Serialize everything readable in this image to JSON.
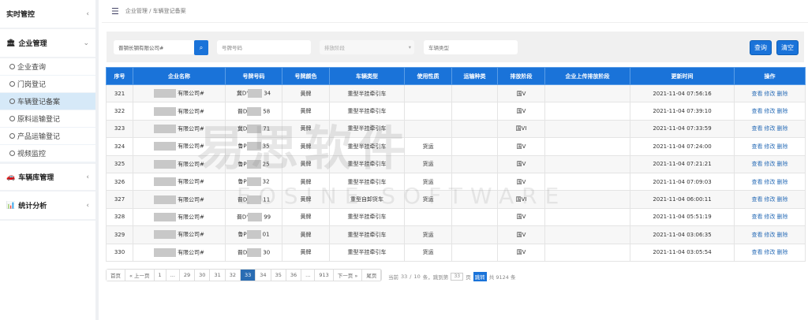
{
  "sidebar": {
    "groups": [
      {
        "label": "实时管控",
        "icon": "none"
      },
      {
        "label": "企业管理",
        "icon": "bank-icon"
      },
      {
        "label": "车辆库管理",
        "icon": "car-icon"
      },
      {
        "label": "统计分析",
        "icon": "bar-chart-icon"
      }
    ],
    "items": [
      {
        "label": "企业查询"
      },
      {
        "label": "门岗登记"
      },
      {
        "label": "车辆登记备案",
        "active": true
      },
      {
        "label": "原料运输登记"
      },
      {
        "label": "产品运输登记"
      },
      {
        "label": "视频监控"
      }
    ]
  },
  "breadcrumb": "企业管理 / 车辆登记备案",
  "filters": {
    "company_value": "晋钢长钢有限公司#",
    "plate_placeholder": "号牌号码",
    "emission_placeholder": "排放阶段",
    "vehicle_type_placeholder": "车辆类型",
    "query": "查询",
    "clear": "清空"
  },
  "table": {
    "headers": [
      "序号",
      "企业名称",
      "号牌号码",
      "号牌颜色",
      "车辆类型",
      "使用性质",
      "运输种类",
      "排放阶段",
      "企业上传排放阶段",
      "更新时间",
      "操作"
    ],
    "rows": [
      [
        "321",
        "有限公司#",
        "冀D'",
        "34",
        "黄牌",
        "重型半挂牵引车",
        "",
        "",
        "国V",
        "",
        "2021-11-04 07:56:16"
      ],
      [
        "322",
        "有限公司#",
        "晋D",
        "58",
        "黄牌",
        "重型半挂牵引车",
        "",
        "",
        "国V",
        "",
        "2021-11-04 07:39:10"
      ],
      [
        "323",
        "有限公司#",
        "冀D",
        "71",
        "黄牌",
        "重型半挂牵引车",
        "",
        "",
        "国VI",
        "",
        "2021-11-04 07:33:59"
      ],
      [
        "324",
        "有限公司#",
        "鲁P",
        "35",
        "黄牌",
        "重型半挂牵引车",
        "货运",
        "",
        "国V",
        "",
        "2021-11-04 07:24:00"
      ],
      [
        "325",
        "有限公司#",
        "鲁P",
        "25",
        "黄牌",
        "重型半挂牵引车",
        "货运",
        "",
        "国V",
        "",
        "2021-11-04 07:21:21"
      ],
      [
        "326",
        "有限公司#",
        "鲁P",
        "32",
        "黄牌",
        "重型半挂牵引车",
        "货运",
        "",
        "国V",
        "",
        "2021-11-04 07:09:03"
      ],
      [
        "327",
        "有限公司#",
        "晋D",
        "11",
        "黄牌",
        "重型自卸货车",
        "货运",
        "",
        "国VI",
        "",
        "2021-11-04 06:00:11"
      ],
      [
        "328",
        "有限公司#",
        "晋D'",
        "99",
        "黄牌",
        "重型半挂牵引车",
        "",
        "",
        "国V",
        "",
        "2021-11-04 05:51:19"
      ],
      [
        "329",
        "有限公司#",
        "鲁P",
        "01",
        "黄牌",
        "重型半挂牵引车",
        "货运",
        "",
        "国V",
        "",
        "2021-11-04 03:06:35"
      ],
      [
        "330",
        "有限公司#",
        "晋D",
        "30",
        "黄牌",
        "重型半挂牵引车",
        "货运",
        "",
        "国V",
        "",
        "2021-11-04 03:05:54"
      ]
    ],
    "actions": [
      "查看",
      "修改",
      "删除"
    ]
  },
  "pagination": {
    "pages": [
      "首页",
      "« 上一页",
      "1",
      "...",
      "29",
      "30",
      "31",
      "32",
      "33",
      "34",
      "35",
      "36",
      "...",
      "913",
      "下一页 »",
      "尾页"
    ],
    "current": "33",
    "info": {
      "current_label": "当前",
      "current": "33",
      "sep": "/",
      "per_page": "10",
      "per_page_suffix": "条，跳到第",
      "jump_value": "33",
      "page_suffix": "页",
      "go": "跳转",
      "total": "共 9124 条"
    }
  },
  "watermark": {
    "cn": "易思软件",
    "en": "EOSINE SOFTWARE"
  },
  "colors": {
    "accent": "#1a73d9",
    "active_item": "#d6e9f8"
  }
}
